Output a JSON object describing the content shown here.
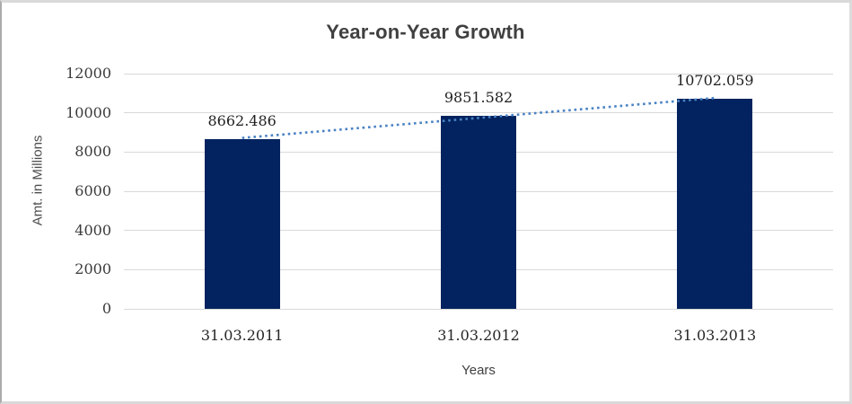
{
  "chart": {
    "title": "Year-on-Year Growth",
    "y_axis_title": "Amt. in Millions",
    "x_axis_title": "Years"
  },
  "chart_data": {
    "type": "bar",
    "title": "Year-on-Year Growth",
    "categories": [
      "31.03.2011",
      "31.03.2012",
      "31.03.2013"
    ],
    "values": [
      8662.486,
      9851.582,
      10702.059
    ],
    "data_labels": [
      "8662.486",
      "9851.582",
      "10702.059"
    ],
    "xlabel": "Years",
    "ylabel": "Amt. in Millions",
    "ylim": [
      0,
      12000
    ],
    "y_tick_step": 2000,
    "y_ticks": [
      0,
      2000,
      4000,
      6000,
      8000,
      10000,
      12000
    ],
    "grid": "horizontal",
    "legend": "none",
    "colors": {
      "bar": "#02235f",
      "trendline": "#4a82c4",
      "gridline": "#d9d9d9",
      "title_text": "#404040",
      "tick_text": "#3a3a3a"
    },
    "trendline": {
      "style": "dotted",
      "fit": "linear"
    }
  }
}
